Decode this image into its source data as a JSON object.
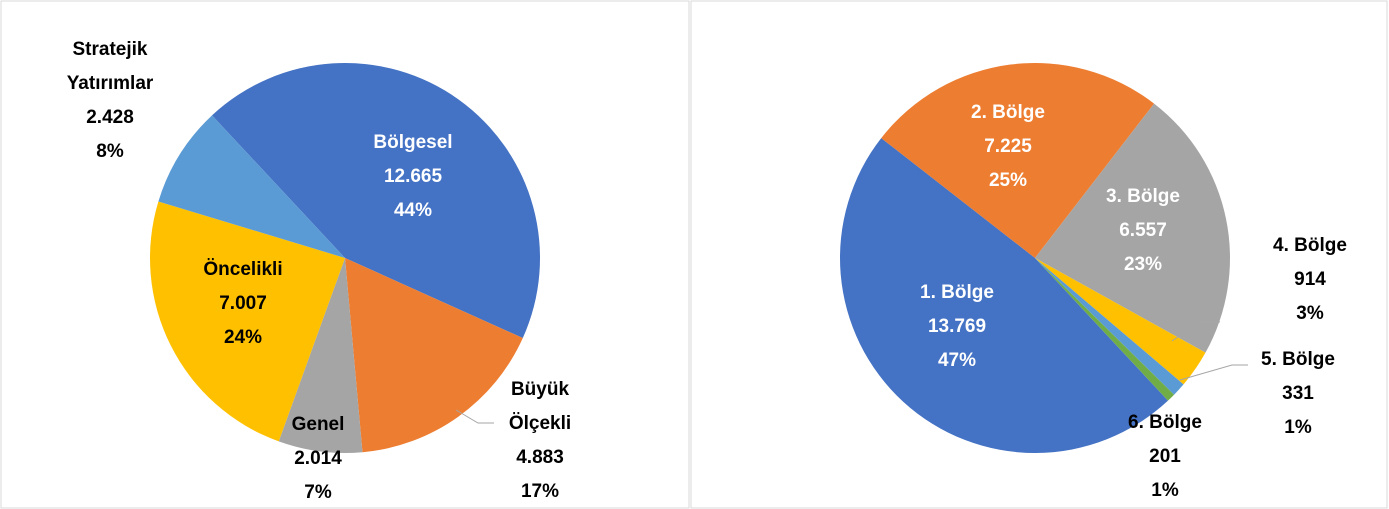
{
  "chart_data": [
    {
      "type": "pie",
      "categories": [
        "Bölgesel",
        "Büyük Ölçekli",
        "Genel",
        "Öncelikli",
        "Stratejik Yatırımlar"
      ],
      "values": [
        12665,
        4883,
        2014,
        7007,
        2428
      ],
      "value_labels": [
        "12.665",
        "4.883",
        "2.014",
        "7.007",
        "2.428"
      ],
      "percent_labels": [
        "44%",
        "17%",
        "7%",
        "24%",
        "8%"
      ],
      "colors": [
        "#4472c4",
        "#ed7d31",
        "#a5a5a5",
        "#ffc000",
        "#5b9bd5"
      ]
    },
    {
      "type": "pie",
      "categories": [
        "1. Bölge",
        "2. Bölge",
        "3. Bölge",
        "4. Bölge",
        "5. Bölge",
        "6. Bölge"
      ],
      "values": [
        13769,
        7225,
        6557,
        914,
        331,
        201
      ],
      "value_labels": [
        "13.769",
        "7.225",
        "6.557",
        "914",
        "331",
        "201"
      ],
      "percent_labels": [
        "47%",
        "25%",
        "23%",
        "3%",
        "1%",
        "1%"
      ],
      "colors": [
        "#4472c4",
        "#ed7d31",
        "#a5a5a5",
        "#ffc000",
        "#5b9bd5",
        "#70ad47"
      ]
    }
  ]
}
